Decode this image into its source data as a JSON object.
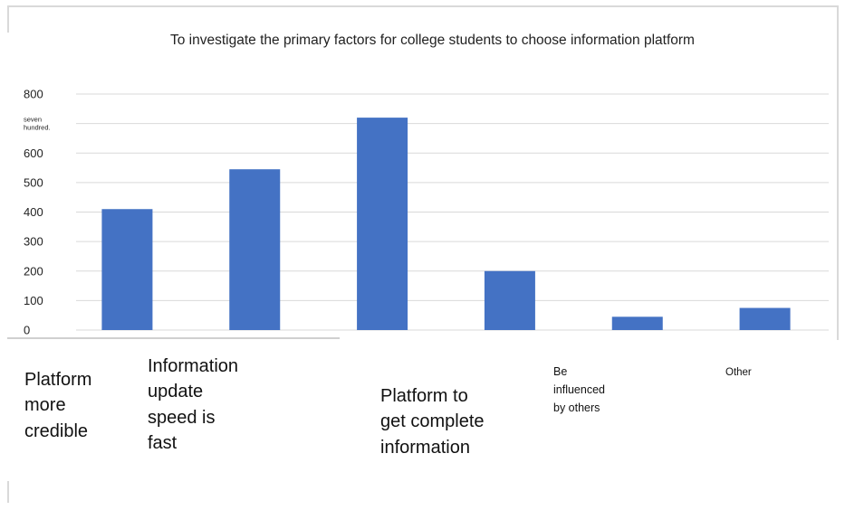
{
  "chart_data": {
    "type": "bar",
    "title": "To investigate the primary factors for college students to choose information platform",
    "categories": [
      "Platform\nmore\ncredible",
      "Information\n update\nspeed is\nfast",
      "",
      "Platform to\nget complete\n information",
      "Be\ninfluenced\nby others",
      "Other"
    ],
    "values": [
      410,
      545,
      720,
      200,
      45,
      75
    ],
    "ylim": [
      0,
      800
    ],
    "yticks": [
      {
        "value": 0,
        "label": "0"
      },
      {
        "value": 100,
        "label": "100"
      },
      {
        "value": 200,
        "label": "200"
      },
      {
        "value": 300,
        "label": "300"
      },
      {
        "value": 400,
        "label": "400"
      },
      {
        "value": 500,
        "label": "500"
      },
      {
        "value": 600,
        "label": "600"
      },
      {
        "value": 700,
        "label": "seven\nhundred."
      },
      {
        "value": 800,
        "label": "800"
      }
    ],
    "grid": true,
    "bar_color": "#4472c4",
    "grid_color": "#d9d9d9",
    "xlabel": "",
    "ylabel": ""
  }
}
